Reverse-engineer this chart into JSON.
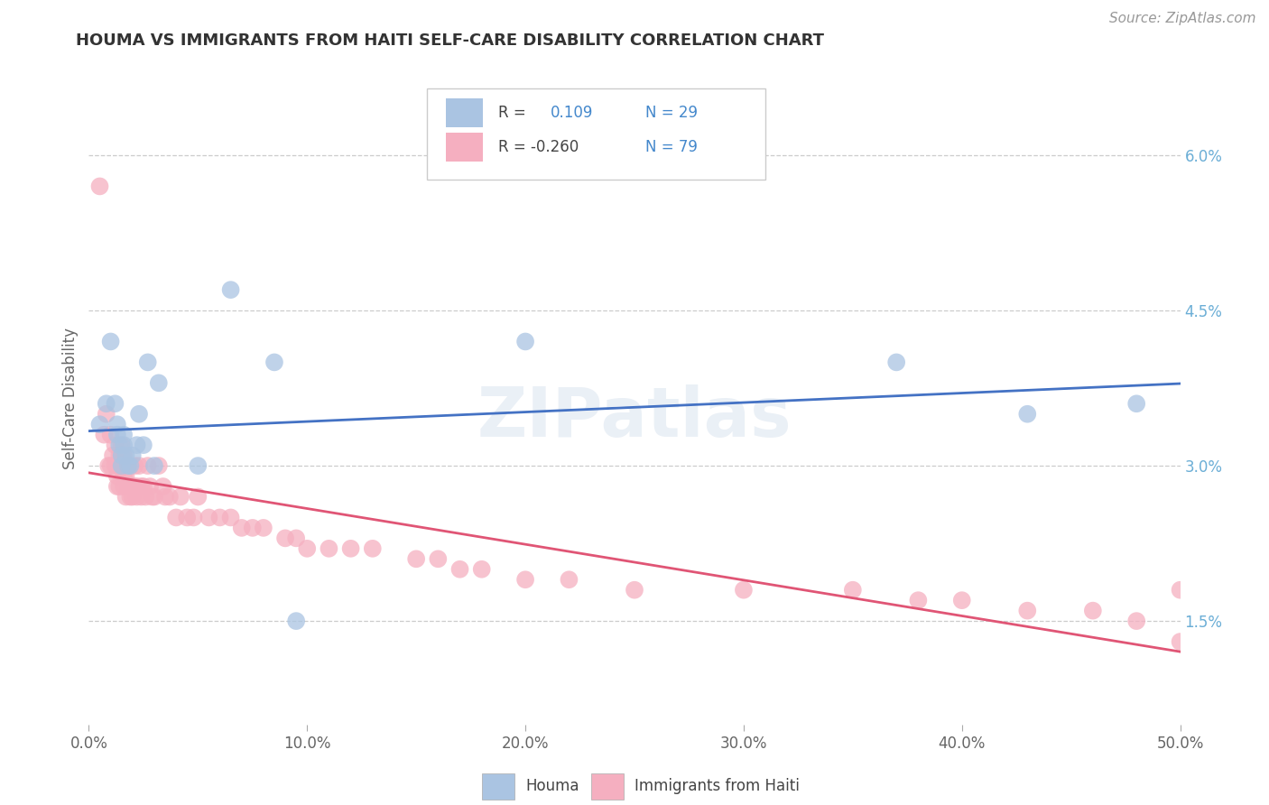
{
  "title": "HOUMA VS IMMIGRANTS FROM HAITI SELF-CARE DISABILITY CORRELATION CHART",
  "source": "Source: ZipAtlas.com",
  "ylabel": "Self-Care Disability",
  "right_yticks": [
    "1.5%",
    "3.0%",
    "4.5%",
    "6.0%"
  ],
  "right_ytick_vals": [
    0.015,
    0.03,
    0.045,
    0.06
  ],
  "xlim": [
    0.0,
    0.5
  ],
  "ylim": [
    0.005,
    0.068
  ],
  "legend_r_houma": "R =",
  "legend_rv_houma": "0.109",
  "legend_n_houma": "N = 29",
  "legend_r_haiti": "R = -0.260",
  "legend_rv_haiti": "-0.260",
  "legend_n_haiti": "N = 79",
  "color_houma": "#aac4e2",
  "color_haiti": "#f5afc0",
  "color_line_houma": "#4472c4",
  "color_line_haiti": "#e05575",
  "color_rtick": "#6baed6",
  "watermark": "ZIPatlas",
  "background_color": "#ffffff",
  "houma_x": [
    0.005,
    0.008,
    0.01,
    0.012,
    0.013,
    0.013,
    0.014,
    0.015,
    0.015,
    0.016,
    0.016,
    0.017,
    0.018,
    0.019,
    0.02,
    0.022,
    0.023,
    0.025,
    0.027,
    0.03,
    0.032,
    0.05,
    0.065,
    0.085,
    0.095,
    0.2,
    0.37,
    0.43,
    0.48
  ],
  "houma_y": [
    0.034,
    0.036,
    0.042,
    0.036,
    0.034,
    0.033,
    0.032,
    0.03,
    0.031,
    0.033,
    0.032,
    0.031,
    0.03,
    0.03,
    0.031,
    0.032,
    0.035,
    0.032,
    0.04,
    0.03,
    0.038,
    0.03,
    0.047,
    0.04,
    0.015,
    0.042,
    0.04,
    0.035,
    0.036
  ],
  "haiti_x": [
    0.005,
    0.007,
    0.008,
    0.009,
    0.01,
    0.01,
    0.011,
    0.012,
    0.012,
    0.013,
    0.013,
    0.013,
    0.014,
    0.014,
    0.014,
    0.015,
    0.015,
    0.016,
    0.016,
    0.016,
    0.017,
    0.017,
    0.017,
    0.018,
    0.018,
    0.019,
    0.019,
    0.02,
    0.02,
    0.021,
    0.021,
    0.022,
    0.022,
    0.023,
    0.024,
    0.024,
    0.025,
    0.026,
    0.027,
    0.028,
    0.029,
    0.03,
    0.032,
    0.034,
    0.035,
    0.037,
    0.04,
    0.042,
    0.045,
    0.048,
    0.05,
    0.055,
    0.06,
    0.065,
    0.07,
    0.075,
    0.08,
    0.09,
    0.095,
    0.1,
    0.11,
    0.12,
    0.13,
    0.15,
    0.16,
    0.17,
    0.18,
    0.2,
    0.22,
    0.25,
    0.3,
    0.35,
    0.38,
    0.4,
    0.43,
    0.46,
    0.48,
    0.5,
    0.5
  ],
  "haiti_y": [
    0.057,
    0.033,
    0.035,
    0.03,
    0.033,
    0.03,
    0.031,
    0.032,
    0.03,
    0.03,
    0.029,
    0.028,
    0.031,
    0.03,
    0.028,
    0.032,
    0.031,
    0.031,
    0.029,
    0.028,
    0.03,
    0.029,
    0.027,
    0.03,
    0.028,
    0.028,
    0.027,
    0.028,
    0.027,
    0.03,
    0.028,
    0.028,
    0.027,
    0.03,
    0.028,
    0.027,
    0.028,
    0.027,
    0.03,
    0.028,
    0.027,
    0.027,
    0.03,
    0.028,
    0.027,
    0.027,
    0.025,
    0.027,
    0.025,
    0.025,
    0.027,
    0.025,
    0.025,
    0.025,
    0.024,
    0.024,
    0.024,
    0.023,
    0.023,
    0.022,
    0.022,
    0.022,
    0.022,
    0.021,
    0.021,
    0.02,
    0.02,
    0.019,
    0.019,
    0.018,
    0.018,
    0.018,
    0.017,
    0.017,
    0.016,
    0.016,
    0.015,
    0.013,
    0.018
  ]
}
